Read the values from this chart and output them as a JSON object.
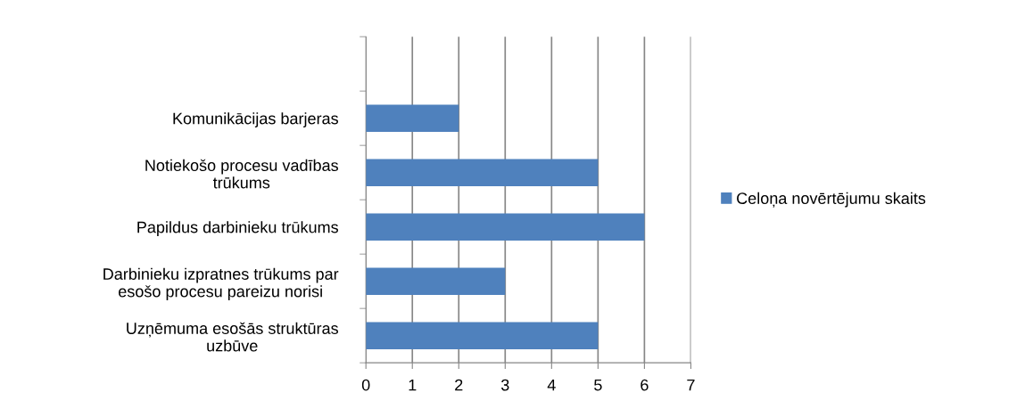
{
  "chart_data": {
    "type": "bar",
    "orientation": "horizontal",
    "categories": [
      null,
      "Komunikācijas barjeras",
      "Notiekošo procesu vadības\ntrūkums",
      "Papildus darbinieku trūkums",
      "Darbinieku izpratnes trūkums par\nesošo procesu pareizu norisi",
      "Uzņēmuma esošās struktūras\nuzbūve"
    ],
    "series": [
      {
        "name": "Celoņa novērtējumu skaits",
        "color": "#4f81bd",
        "values": [
          null,
          2,
          5,
          6,
          3,
          5
        ]
      }
    ],
    "xlim": [
      0,
      7
    ],
    "xticks": [
      0,
      1,
      2,
      3,
      4,
      5,
      6,
      7
    ],
    "grid": "x",
    "legend": "right"
  }
}
